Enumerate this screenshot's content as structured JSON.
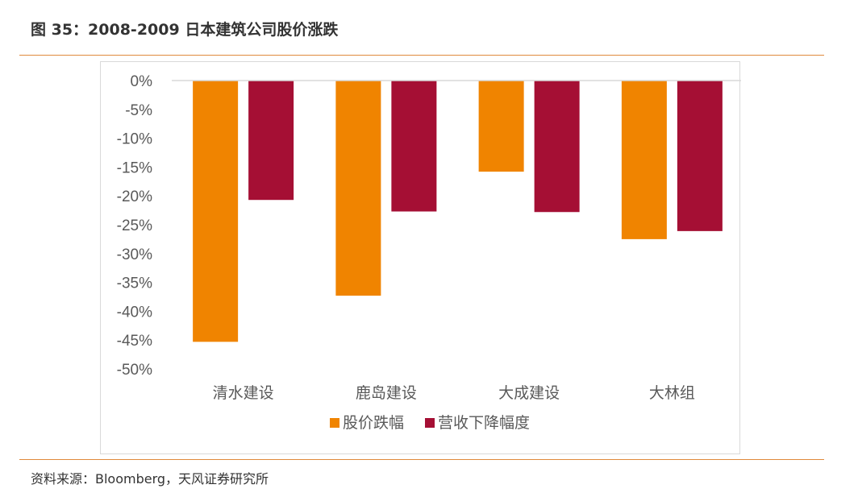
{
  "figure": {
    "title": "图 35：2008-2009 日本建筑公司股价涨跌",
    "source": "资料来源：Bloomberg，天风证券研究所"
  },
  "colors": {
    "rule": "#e08a3c",
    "series_1": "#f08400",
    "series_2": "#a50f34",
    "axis": "#d9d9d9",
    "text": "#595959"
  },
  "chart_data": {
    "type": "bar",
    "categories": [
      "清水建设",
      "鹿岛建设",
      "大成建设",
      "大林组"
    ],
    "series": [
      {
        "name": "股价跌幅",
        "values": [
          -45.3,
          -37.3,
          -15.8,
          -27.5
        ]
      },
      {
        "name": "营收下降幅度",
        "values": [
          -20.7,
          -22.7,
          -22.8,
          -26.1
        ]
      }
    ],
    "ylim": [
      -50,
      0
    ],
    "yticks": [
      "0%",
      "-5%",
      "-10%",
      "-15%",
      "-20%",
      "-25%",
      "-30%",
      "-35%",
      "-40%",
      "-45%",
      "-50%"
    ],
    "ytick_values": [
      0,
      -5,
      -10,
      -15,
      -20,
      -25,
      -30,
      -35,
      -40,
      -45,
      -50
    ],
    "grid": false,
    "legend_position": "bottom",
    "title": "",
    "xlabel": "",
    "ylabel": ""
  }
}
